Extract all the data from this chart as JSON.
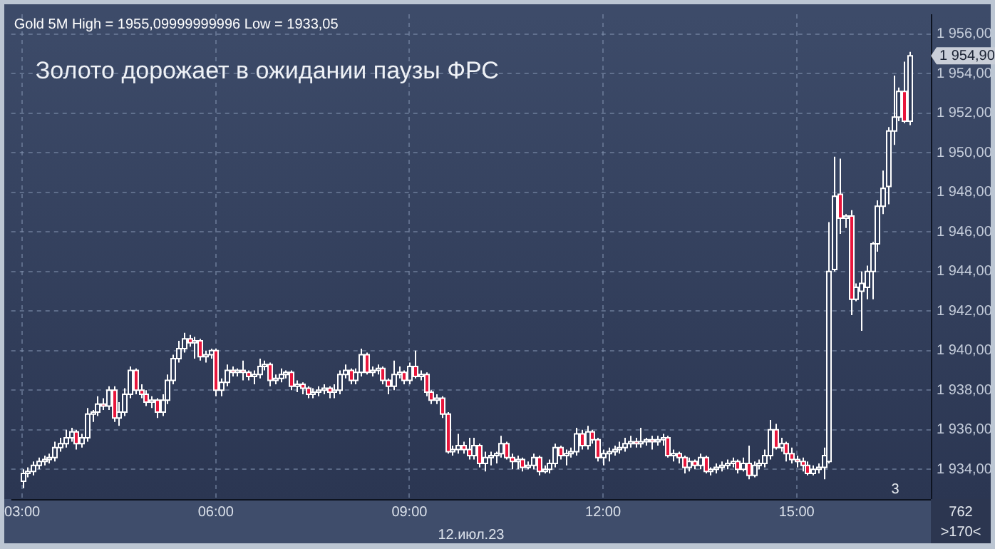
{
  "chart_data": {
    "type": "candlestick",
    "title": "Золото дорожает в ожидании паузы ФРС",
    "subtitle": "Gold 5M High = 1955,09999999996 Low = 1933,05",
    "xlabel": "12.июл.23",
    "annotations": [
      "3",
      "762",
      ">170<",
      "1 954,90"
    ],
    "color": "#ffffff",
    "grid": true,
    "xlim": [
      2.83,
      17.08
    ],
    "xticks": [
      {
        "value": 3,
        "label": "03:00"
      },
      {
        "value": 6,
        "label": "06:00"
      },
      {
        "value": 9,
        "label": "09:00"
      },
      {
        "value": 12,
        "label": "12:00"
      },
      {
        "value": 15,
        "label": "15:00"
      }
    ],
    "ylim": [
      1932.5,
      1957
    ],
    "yticks": [
      {
        "value": 1934,
        "label": "1 934,00"
      },
      {
        "value": 1936,
        "label": "1 936,00"
      },
      {
        "value": 1938,
        "label": "1 938,00"
      },
      {
        "value": 1940,
        "label": "1 940,00"
      },
      {
        "value": 1942,
        "label": "1 942,00"
      },
      {
        "value": 1944,
        "label": "1 944,00"
      },
      {
        "value": 1946,
        "label": "1 946,00"
      },
      {
        "value": 1948,
        "label": "1 948,00"
      },
      {
        "value": 1950,
        "label": "1 950,00"
      },
      {
        "value": 1952,
        "label": "1 952,00"
      },
      {
        "value": 1954,
        "label": "1 954,00"
      },
      {
        "value": 1956,
        "label": "1 956,00"
      }
    ],
    "x": [
      3,
      3.083,
      3.167,
      3.25,
      3.333,
      3.417,
      3.5,
      3.583,
      3.667,
      3.75,
      3.833,
      3.917,
      4,
      4.083,
      4.167,
      4.25,
      4.333,
      4.417,
      4.5,
      4.583,
      4.667,
      4.75,
      4.833,
      4.917,
      5,
      5.083,
      5.167,
      5.25,
      5.333,
      5.417,
      5.5,
      5.583,
      5.667,
      5.75,
      5.833,
      5.917,
      6,
      6.083,
      6.167,
      6.25,
      6.333,
      6.417,
      6.5,
      6.583,
      6.667,
      6.75,
      6.833,
      6.917,
      7,
      7.083,
      7.167,
      7.25,
      7.333,
      7.417,
      7.5,
      7.583,
      7.667,
      7.75,
      7.833,
      7.917,
      8,
      8.083,
      8.167,
      8.25,
      8.333,
      8.417,
      8.5,
      8.583,
      8.667,
      8.75,
      8.833,
      8.917,
      9,
      9.083,
      9.167,
      9.25,
      9.333,
      9.417,
      9.5,
      9.583,
      9.667,
      9.75,
      9.833,
      9.917,
      10,
      10.083,
      10.167,
      10.25,
      10.333,
      10.417,
      10.5,
      10.583,
      10.667,
      10.75,
      10.833,
      10.917,
      11,
      11.083,
      11.167,
      11.25,
      11.333,
      11.417,
      11.5,
      11.583,
      11.667,
      11.75,
      11.833,
      11.917,
      12,
      12.083,
      12.167,
      12.25,
      12.333,
      12.417,
      12.5,
      12.583,
      12.667,
      12.75,
      12.833,
      12.917,
      13,
      13.083,
      13.167,
      13.25,
      13.333,
      13.417,
      13.5,
      13.583,
      13.667,
      13.75,
      13.833,
      13.917,
      14,
      14.083,
      14.167,
      14.25,
      14.333,
      14.417,
      14.5,
      14.583,
      14.667,
      14.75,
      14.833,
      14.917,
      15,
      15.083,
      15.167,
      15.25,
      15.333,
      15.417,
      15.5,
      15.583,
      15.667,
      15.75,
      15.833,
      15.917,
      16,
      16.083,
      16.167,
      16.25,
      16.333,
      16.417,
      16.5,
      16.583,
      16.667,
      16.75
    ],
    "ohlc": [
      [
        1933.4,
        1934.0,
        1933.05,
        1933.8
      ],
      [
        1933.8,
        1934.1,
        1933.6,
        1933.9
      ],
      [
        1933.9,
        1934.4,
        1933.7,
        1934.2
      ],
      [
        1934.2,
        1934.6,
        1934.0,
        1934.4
      ],
      [
        1934.4,
        1934.7,
        1934.2,
        1934.5
      ],
      [
        1934.5,
        1934.8,
        1934.3,
        1934.6
      ],
      [
        1934.6,
        1935.4,
        1934.4,
        1935.1
      ],
      [
        1935.1,
        1935.6,
        1934.9,
        1935.3
      ],
      [
        1935.3,
        1936.0,
        1935.1,
        1935.6
      ],
      [
        1935.6,
        1936.1,
        1935.4,
        1935.9
      ],
      [
        1935.9,
        1936.0,
        1935.0,
        1935.3
      ],
      [
        1935.3,
        1935.8,
        1935.1,
        1935.6
      ],
      [
        1935.6,
        1937.1,
        1935.4,
        1936.8
      ],
      [
        1936.8,
        1937.0,
        1936.4,
        1936.9
      ],
      [
        1936.9,
        1937.7,
        1936.7,
        1937.3
      ],
      [
        1937.3,
        1937.6,
        1937.0,
        1937.2
      ],
      [
        1937.2,
        1938.2,
        1937.0,
        1938.0
      ],
      [
        1938.0,
        1938.2,
        1936.4,
        1936.6
      ],
      [
        1936.6,
        1937.4,
        1936.2,
        1936.9
      ],
      [
        1936.9,
        1938.1,
        1936.7,
        1937.8
      ],
      [
        1937.8,
        1939.2,
        1937.6,
        1939.0
      ],
      [
        1939.0,
        1939.1,
        1937.8,
        1938.0
      ],
      [
        1938.0,
        1938.3,
        1937.6,
        1937.8
      ],
      [
        1937.8,
        1938.0,
        1937.2,
        1937.4
      ],
      [
        1937.4,
        1937.7,
        1937.1,
        1937.5
      ],
      [
        1937.5,
        1937.6,
        1936.6,
        1936.9
      ],
      [
        1936.9,
        1937.8,
        1936.7,
        1937.5
      ],
      [
        1937.5,
        1938.8,
        1937.3,
        1938.5
      ],
      [
        1938.5,
        1939.8,
        1938.3,
        1939.6
      ],
      [
        1939.6,
        1940.5,
        1939.4,
        1940.1
      ],
      [
        1940.1,
        1940.9,
        1939.9,
        1940.6
      ],
      [
        1940.6,
        1940.8,
        1940.2,
        1940.4
      ],
      [
        1940.4,
        1940.7,
        1939.6,
        1940.5
      ],
      [
        1940.5,
        1940.6,
        1939.5,
        1939.7
      ],
      [
        1939.7,
        1940.0,
        1939.4,
        1939.8
      ],
      [
        1939.8,
        1940.1,
        1939.6,
        1940.0
      ],
      [
        1940.0,
        1940.1,
        1937.7,
        1938.0
      ],
      [
        1938.0,
        1938.6,
        1937.7,
        1938.4
      ],
      [
        1938.4,
        1939.3,
        1938.2,
        1939.0
      ],
      [
        1939.0,
        1939.2,
        1938.7,
        1938.9
      ],
      [
        1938.9,
        1939.1,
        1938.7,
        1939.0
      ],
      [
        1939.0,
        1939.5,
        1938.5,
        1938.9
      ],
      [
        1938.9,
        1939.0,
        1938.5,
        1938.7
      ],
      [
        1938.7,
        1939.0,
        1938.3,
        1938.8
      ],
      [
        1938.8,
        1939.6,
        1938.6,
        1939.2
      ],
      [
        1939.2,
        1939.5,
        1939.0,
        1939.3
      ],
      [
        1939.3,
        1939.4,
        1938.2,
        1938.5
      ],
      [
        1938.5,
        1938.8,
        1938.3,
        1938.6
      ],
      [
        1938.6,
        1939.1,
        1938.4,
        1938.8
      ],
      [
        1938.8,
        1939.0,
        1938.6,
        1938.9
      ],
      [
        1938.9,
        1939.0,
        1938.0,
        1938.2
      ],
      [
        1938.2,
        1938.5,
        1937.9,
        1938.3
      ],
      [
        1938.3,
        1938.4,
        1937.8,
        1938.1
      ],
      [
        1938.1,
        1938.2,
        1937.6,
        1937.8
      ],
      [
        1937.8,
        1938.1,
        1937.6,
        1937.9
      ],
      [
        1937.9,
        1938.2,
        1937.7,
        1938.0
      ],
      [
        1938.0,
        1938.3,
        1937.8,
        1938.1
      ],
      [
        1938.1,
        1938.2,
        1937.6,
        1937.9
      ],
      [
        1937.9,
        1938.3,
        1937.6,
        1938.0
      ],
      [
        1938.0,
        1939.0,
        1937.8,
        1938.8
      ],
      [
        1938.8,
        1939.3,
        1938.6,
        1939.0
      ],
      [
        1939.0,
        1939.1,
        1938.3,
        1938.5
      ],
      [
        1938.5,
        1939.1,
        1938.3,
        1938.9
      ],
      [
        1938.9,
        1940.1,
        1938.7,
        1939.8
      ],
      [
        1939.8,
        1939.9,
        1938.8,
        1938.9
      ],
      [
        1938.9,
        1939.2,
        1938.7,
        1939.0
      ],
      [
        1939.0,
        1939.3,
        1938.8,
        1939.1
      ],
      [
        1939.1,
        1939.2,
        1938.3,
        1938.5
      ],
      [
        1938.5,
        1938.6,
        1937.8,
        1938.2
      ],
      [
        1938.2,
        1939.5,
        1938.0,
        1938.8
      ],
      [
        1938.8,
        1939.2,
        1938.6,
        1938.9
      ],
      [
        1938.9,
        1939.0,
        1938.3,
        1938.5
      ],
      [
        1938.5,
        1939.4,
        1938.3,
        1939.2
      ],
      [
        1939.2,
        1940.0,
        1938.6,
        1938.7
      ],
      [
        1938.7,
        1939.0,
        1938.5,
        1938.8
      ],
      [
        1938.8,
        1938.9,
        1937.7,
        1937.9
      ],
      [
        1937.9,
        1938.0,
        1937.3,
        1937.5
      ],
      [
        1937.5,
        1937.8,
        1937.3,
        1937.6
      ],
      [
        1937.6,
        1937.7,
        1936.6,
        1936.8
      ],
      [
        1936.8,
        1936.9,
        1934.8,
        1934.9
      ],
      [
        1934.9,
        1935.2,
        1934.7,
        1935.0
      ],
      [
        1935.0,
        1935.8,
        1934.8,
        1935.2
      ],
      [
        1935.2,
        1935.4,
        1934.8,
        1935.0
      ],
      [
        1935.0,
        1935.6,
        1934.5,
        1934.7
      ],
      [
        1934.7,
        1935.6,
        1934.5,
        1935.2
      ],
      [
        1935.2,
        1935.3,
        1934.1,
        1934.3
      ],
      [
        1934.3,
        1934.9,
        1933.9,
        1934.6
      ],
      [
        1934.6,
        1934.9,
        1934.2,
        1934.7
      ],
      [
        1934.7,
        1934.9,
        1934.3,
        1934.8
      ],
      [
        1934.8,
        1935.7,
        1934.6,
        1935.3
      ],
      [
        1935.3,
        1935.4,
        1934.5,
        1934.6
      ],
      [
        1934.6,
        1934.8,
        1934.0,
        1934.4
      ],
      [
        1934.4,
        1934.7,
        1934.0,
        1934.5
      ],
      [
        1934.5,
        1934.6,
        1933.9,
        1934.1
      ],
      [
        1934.1,
        1934.4,
        1934.0,
        1934.2
      ],
      [
        1934.2,
        1934.8,
        1934.0,
        1934.6
      ],
      [
        1934.6,
        1934.7,
        1933.7,
        1933.9
      ],
      [
        1933.9,
        1934.2,
        1933.8,
        1934.0
      ],
      [
        1934.0,
        1934.5,
        1933.8,
        1934.3
      ],
      [
        1934.3,
        1935.3,
        1934.1,
        1935.1
      ],
      [
        1935.1,
        1935.2,
        1934.5,
        1934.7
      ],
      [
        1934.7,
        1935.0,
        1934.2,
        1934.8
      ],
      [
        1934.8,
        1935.1,
        1934.6,
        1934.9
      ],
      [
        1934.9,
        1936.1,
        1934.7,
        1935.8
      ],
      [
        1935.8,
        1936.0,
        1935.0,
        1935.2
      ],
      [
        1935.2,
        1936.2,
        1935.0,
        1935.9
      ],
      [
        1935.9,
        1936.0,
        1935.3,
        1935.5
      ],
      [
        1935.5,
        1935.6,
        1934.4,
        1934.6
      ],
      [
        1934.6,
        1935.0,
        1934.2,
        1934.8
      ],
      [
        1934.8,
        1935.1,
        1934.4,
        1934.9
      ],
      [
        1934.9,
        1935.2,
        1934.7,
        1935.0
      ],
      [
        1935.0,
        1935.4,
        1934.8,
        1935.1
      ],
      [
        1935.1,
        1935.6,
        1934.9,
        1935.3
      ],
      [
        1935.3,
        1935.7,
        1935.1,
        1935.4
      ],
      [
        1935.4,
        1935.6,
        1935.1,
        1935.3
      ],
      [
        1935.3,
        1936.1,
        1935.1,
        1935.4
      ],
      [
        1935.4,
        1935.6,
        1935.2,
        1935.5
      ],
      [
        1935.5,
        1935.7,
        1935.0,
        1935.4
      ],
      [
        1935.4,
        1935.7,
        1935.2,
        1935.5
      ],
      [
        1935.5,
        1935.8,
        1935.2,
        1935.6
      ],
      [
        1935.6,
        1935.7,
        1934.6,
        1934.7
      ],
      [
        1934.7,
        1935.0,
        1934.4,
        1934.8
      ],
      [
        1934.8,
        1934.9,
        1934.3,
        1934.6
      ],
      [
        1934.6,
        1934.7,
        1933.8,
        1934.1
      ],
      [
        1934.1,
        1934.6,
        1933.9,
        1934.4
      ],
      [
        1934.4,
        1934.5,
        1934.0,
        1934.2
      ],
      [
        1934.2,
        1934.8,
        1934.0,
        1934.6
      ],
      [
        1934.6,
        1934.7,
        1933.8,
        1933.9
      ],
      [
        1933.9,
        1934.1,
        1933.7,
        1934.0
      ],
      [
        1934.0,
        1934.3,
        1933.8,
        1934.1
      ],
      [
        1934.1,
        1934.4,
        1933.9,
        1934.2
      ],
      [
        1934.2,
        1934.5,
        1934.0,
        1934.3
      ],
      [
        1934.3,
        1934.6,
        1934.1,
        1934.4
      ],
      [
        1934.4,
        1934.5,
        1933.8,
        1934.0
      ],
      [
        1934.0,
        1934.6,
        1933.9,
        1934.3
      ],
      [
        1934.3,
        1935.2,
        1933.5,
        1933.7
      ],
      [
        1933.7,
        1934.4,
        1933.6,
        1934.2
      ],
      [
        1934.2,
        1934.5,
        1934.0,
        1934.3
      ],
      [
        1934.3,
        1935.0,
        1934.1,
        1934.7
      ],
      [
        1934.7,
        1936.5,
        1934.5,
        1936.0
      ],
      [
        1936.0,
        1936.3,
        1935.0,
        1935.1
      ],
      [
        1935.1,
        1935.6,
        1934.9,
        1935.3
      ],
      [
        1935.3,
        1935.4,
        1934.4,
        1934.8
      ],
      [
        1934.8,
        1935.1,
        1934.3,
        1934.5
      ],
      [
        1934.5,
        1934.7,
        1934.1,
        1934.4
      ],
      [
        1934.4,
        1934.6,
        1933.9,
        1934.2
      ],
      [
        1934.2,
        1934.4,
        1933.7,
        1933.8
      ],
      [
        1933.8,
        1934.2,
        1933.7,
        1934.0
      ],
      [
        1934.0,
        1934.3,
        1933.8,
        1934.1
      ],
      [
        1934.1,
        1935.1,
        1933.5,
        1934.7
      ],
      [
        1934.4,
        1946.5,
        1934.3,
        1944.0
      ],
      [
        1944.1,
        1949.8,
        1944.0,
        1947.8
      ],
      [
        1947.9,
        1949.7,
        1945.9,
        1946.7
      ],
      [
        1946.7,
        1946.9,
        1946.2,
        1946.8
      ],
      [
        1946.8,
        1947.1,
        1941.8,
        1942.6
      ],
      [
        1942.6,
        1943.4,
        1942.5,
        1943.2
      ],
      [
        1943.0,
        1944.0,
        1941.0,
        1943.4
      ],
      [
        1943.2,
        1944.3,
        1942.6,
        1944.0
      ],
      [
        1944.0,
        1945.5,
        1942.6,
        1945.4
      ],
      [
        1945.4,
        1947.6,
        1945.0,
        1947.3
      ],
      [
        1947.3,
        1949.1,
        1946.9,
        1948.2
      ],
      [
        1948.3,
        1951.3,
        1947.4,
        1951.1
      ],
      [
        1951.1,
        1953.9,
        1950.4,
        1951.8
      ],
      [
        1951.8,
        1953.3,
        1951.6,
        1953.1
      ],
      [
        1953.1,
        1954.6,
        1951.5,
        1951.6
      ],
      [
        1951.6,
        1955.1,
        1951.4,
        1954.9
      ]
    ],
    "colors": [
      "#2f3c5a",
      "#2f3c5a",
      "#2f3c5a",
      "#2f3c5a",
      "#2f3c5a",
      "#2f3c5a",
      "#2f3c5a",
      "#2f3c5a",
      "#2f3c5a",
      "#2f3c5a",
      "#e8163c",
      "#2f3c5a",
      "#2f3c5a",
      "#2f3c5a",
      "#2f3c5a",
      "#e8163c",
      "#2f3c5a",
      "#e8163c",
      "#2f3c5a",
      "#2f3c5a",
      "#2f3c5a",
      "#e8163c",
      "#e8163c",
      "#e8163c",
      "#2f3c5a",
      "#e8163c",
      "#2f3c5a",
      "#2f3c5a",
      "#2f3c5a",
      "#2f3c5a",
      "#2f3c5a",
      "#e8163c",
      "#2f3c5a",
      "#e8163c",
      "#2f3c5a",
      "#2f3c5a",
      "#e8163c",
      "#2f3c5a",
      "#2f3c5a",
      "#e8163c",
      "#2f3c5a",
      "#e8163c",
      "#e8163c",
      "#2f3c5a",
      "#2f3c5a",
      "#2f3c5a",
      "#e8163c",
      "#2f3c5a",
      "#2f3c5a",
      "#2f3c5a",
      "#e8163c",
      "#2f3c5a",
      "#e8163c",
      "#e8163c",
      "#2f3c5a",
      "#2f3c5a",
      "#2f3c5a",
      "#e8163c",
      "#2f3c5a",
      "#2f3c5a",
      "#2f3c5a",
      "#e8163c",
      "#2f3c5a",
      "#2f3c5a",
      "#e8163c",
      "#2f3c5a",
      "#2f3c5a",
      "#e8163c",
      "#e8163c",
      "#2f3c5a",
      "#2f3c5a",
      "#e8163c",
      "#2f3c5a",
      "#e8163c",
      "#2f3c5a",
      "#e8163c",
      "#e8163c",
      "#2f3c5a",
      "#e8163c",
      "#e8163c",
      "#2f3c5a",
      "#2f3c5a",
      "#e8163c",
      "#e8163c",
      "#2f3c5a",
      "#e8163c",
      "#2f3c5a",
      "#2f3c5a",
      "#2f3c5a",
      "#2f3c5a",
      "#e8163c",
      "#e8163c",
      "#2f3c5a",
      "#e8163c",
      "#2f3c5a",
      "#2f3c5a",
      "#e8163c",
      "#2f3c5a",
      "#2f3c5a",
      "#2f3c5a",
      "#e8163c",
      "#2f3c5a",
      "#2f3c5a",
      "#2f3c5a",
      "#e8163c",
      "#2f3c5a",
      "#e8163c",
      "#e8163c",
      "#2f3c5a",
      "#2f3c5a",
      "#2f3c5a",
      "#2f3c5a",
      "#2f3c5a",
      "#2f3c5a",
      "#e8163c",
      "#2f3c5a",
      "#2f3c5a",
      "#e8163c",
      "#2f3c5a",
      "#2f3c5a",
      "#e8163c",
      "#2f3c5a",
      "#e8163c",
      "#e8163c",
      "#2f3c5a",
      "#e8163c",
      "#2f3c5a",
      "#e8163c",
      "#2f3c5a",
      "#2f3c5a",
      "#2f3c5a",
      "#2f3c5a",
      "#2f3c5a",
      "#e8163c",
      "#2f3c5a",
      "#e8163c",
      "#2f3c5a",
      "#2f3c5a",
      "#2f3c5a",
      "#2f3c5a",
      "#e8163c",
      "#2f3c5a",
      "#e8163c",
      "#e8163c",
      "#e8163c",
      "#e8163c",
      "#e8163c",
      "#2f3c5a",
      "#2f3c5a",
      "#2f3c5a",
      "#2f3c5a",
      "#2f3c5a",
      "#e8163c",
      "#2f3c5a",
      "#e8163c",
      "#2f3c5a",
      "#2f3c5a",
      "#2f3c5a",
      "#2f3c5a",
      "#2f3c5a",
      "#2f3c5a",
      "#2f3c5a",
      "#2f3c5a",
      "#2f3c5a",
      "#e8163c",
      "#2f3c5a"
    ]
  }
}
